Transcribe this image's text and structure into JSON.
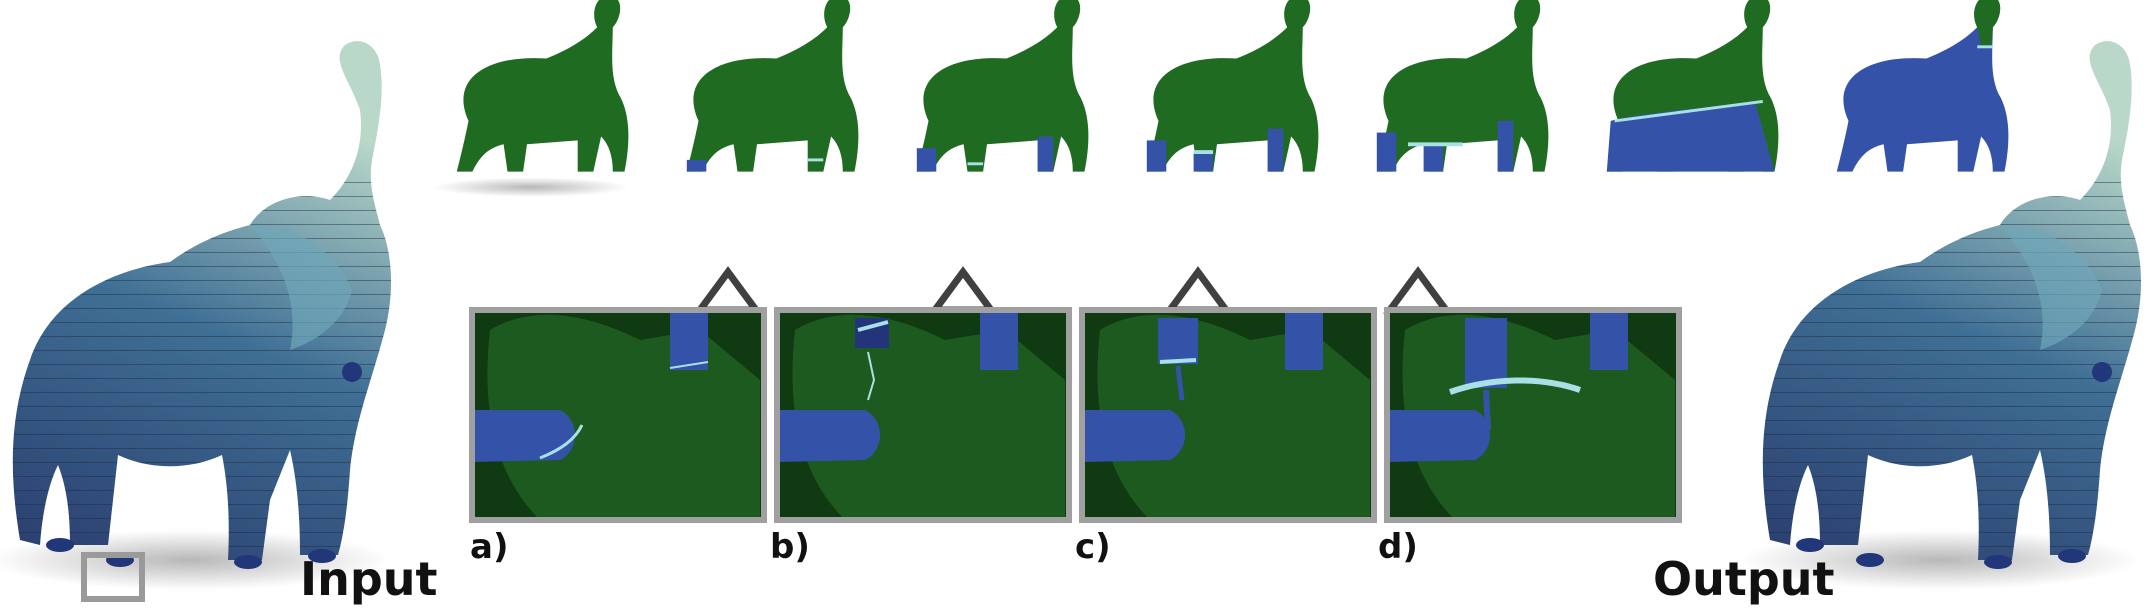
{
  "labels": {
    "input": "Input",
    "output": "Output",
    "a": "a)",
    "b": "b)",
    "c": "c)",
    "d": "d)"
  },
  "colors": {
    "green": "#1f6b22",
    "blue": "#3453a8",
    "cyan": "#a8e0e6",
    "frame": "#a0a0a0"
  }
}
